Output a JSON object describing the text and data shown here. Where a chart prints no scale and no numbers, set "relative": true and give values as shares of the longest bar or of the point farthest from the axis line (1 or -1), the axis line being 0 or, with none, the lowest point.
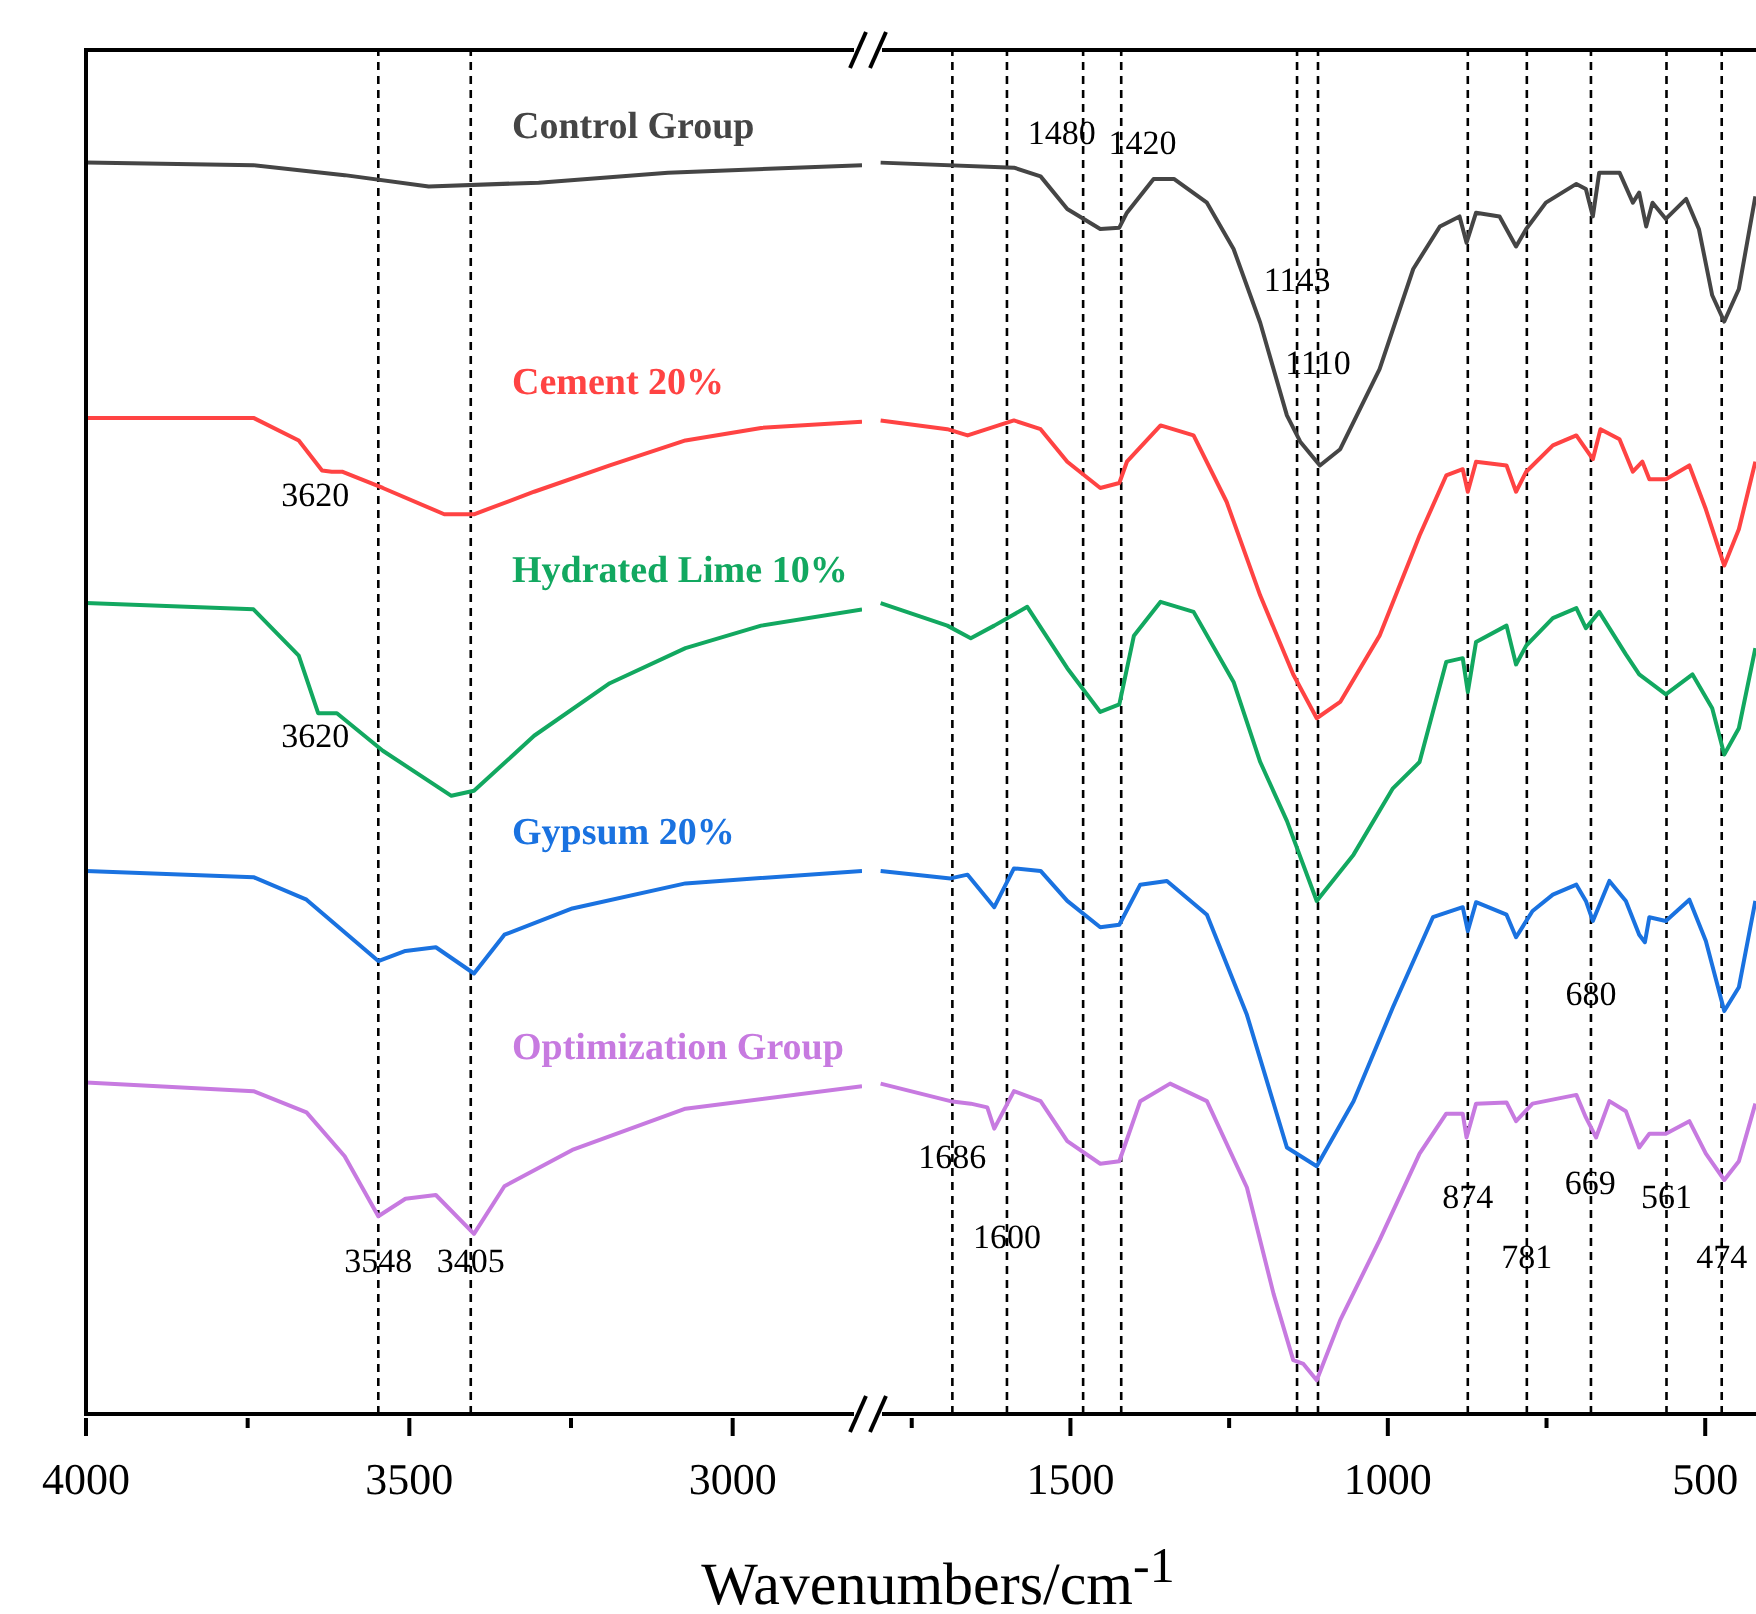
{
  "chart_data": [
    {
      "type": "line",
      "relative": true,
      "xlim": [
        4000,
        2800
      ],
      "xticks": [
        4000,
        {
          "value": 3750,
          "label": null
        },
        3500,
        {
          "value": 3250,
          "label": null
        },
        3000
      ],
      "series": [
        {
          "name": "Control Group",
          "color": "#454545",
          "x": [
            4000,
            3741,
            3600,
            3470,
            3300,
            3100,
            2800
          ],
          "values": [
            1.0,
            0.998,
            0.99,
            0.981,
            0.984,
            0.992,
            0.998
          ]
        },
        {
          "name": "Cement 20%",
          "color": "#ff4343",
          "x": [
            4000,
            3741,
            3671,
            3635,
            3620,
            3604,
            3541,
            3446,
            3400,
            3307,
            3190,
            3073,
            2956,
            2800
          ],
          "values": [
            0.796,
            0.796,
            0.778,
            0.754,
            0.753,
            0.753,
            0.74,
            0.719,
            0.719,
            0.737,
            0.758,
            0.778,
            0.788,
            0.793
          ]
        },
        {
          "name": "Hydrated Lime 10%",
          "color": "#12a860",
          "x": [
            4000,
            3741,
            3671,
            3641,
            3620,
            3612,
            3541,
            3435,
            3400,
            3307,
            3190,
            3073,
            2956,
            2800
          ],
          "values": [
            0.648,
            0.643,
            0.606,
            0.56,
            0.56,
            0.56,
            0.53,
            0.494,
            0.498,
            0.542,
            0.584,
            0.612,
            0.63,
            0.643
          ]
        },
        {
          "name": "Gypsum 20%",
          "color": "#1a72e0",
          "x": [
            4000,
            3741,
            3659,
            3548,
            3506,
            3459,
            3400,
            3353,
            3248,
            3073,
            2800
          ],
          "values": [
            0.434,
            0.429,
            0.411,
            0.362,
            0.37,
            0.373,
            0.352,
            0.383,
            0.404,
            0.424,
            0.434
          ]
        },
        {
          "name": "Optimization Group",
          "color": "#c77ae0",
          "x": [
            4000,
            3741,
            3659,
            3600,
            3548,
            3506,
            3459,
            3400,
            3353,
            3248,
            3073,
            2800
          ],
          "values": [
            0.265,
            0.258,
            0.241,
            0.206,
            0.158,
            0.172,
            0.175,
            0.144,
            0.182,
            0.211,
            0.244,
            0.262
          ]
        }
      ],
      "ref_lines": [
        {
          "axis": "x",
          "value": 3548,
          "color": "#000000",
          "line_style": "dashed"
        },
        {
          "axis": "x",
          "value": 3405,
          "color": "#000000",
          "line_style": "dashed"
        }
      ],
      "annotations": [
        {
          "text": "3620",
          "x": 3620,
          "y": 0.753
        },
        {
          "text": "3620",
          "x": 3620,
          "y": 0.56
        },
        {
          "text": "3548",
          "x": 3548,
          "y": 0.12
        },
        {
          "text": "3405",
          "x": 3405,
          "y": 0.12
        }
      ]
    },
    {
      "type": "line",
      "relative": true,
      "xlim": [
        1800,
        420
      ],
      "xticks": [
        {
          "value": 1750,
          "label": null
        },
        1500,
        {
          "value": 1250,
          "label": null
        },
        1000,
        {
          "value": 750,
          "label": null
        },
        500
      ],
      "xlabel": "Wavenumbers/cm$^{-1}$",
      "series": [
        {
          "color": "#454545",
          "x": [
            1799,
            1589,
            1547,
            1505,
            1453,
            1423,
            1411,
            1369,
            1337,
            1285,
            1243,
            1201,
            1159,
            1138,
            1107,
            1075,
            1013,
            960,
            918,
            887,
            876,
            861,
            824,
            798,
            782,
            751,
            703,
            688,
            677,
            667,
            635,
            614,
            604,
            593,
            583,
            562,
            530,
            510,
            489,
            470,
            447,
            421
          ],
          "values": [
            1.0,
            0.996,
            0.989,
            0.963,
            0.947,
            0.948,
            0.96,
            0.987,
            0.987,
            0.968,
            0.931,
            0.872,
            0.798,
            0.777,
            0.758,
            0.771,
            0.835,
            0.915,
            0.949,
            0.957,
            0.936,
            0.96,
            0.957,
            0.933,
            0.947,
            0.968,
            0.983,
            0.979,
            0.957,
            0.992,
            0.992,
            0.968,
            0.976,
            0.949,
            0.968,
            0.955,
            0.971,
            0.947,
            0.894,
            0.873,
            0.899,
            0.973
          ]
        },
        {
          "color": "#ff4343",
          "x": [
            1799,
            1694,
            1662,
            1589,
            1547,
            1505,
            1453,
            1423,
            1411,
            1358,
            1306,
            1254,
            1201,
            1149,
            1112,
            1075,
            1013,
            950,
            908,
            882,
            874,
            861,
            813,
            798,
            782,
            740,
            703,
            688,
            677,
            665,
            635,
            614,
            599,
            588,
            562,
            525,
            499,
            470,
            447,
            421
          ],
          "values": [
            0.794,
            0.787,
            0.782,
            0.794,
            0.787,
            0.761,
            0.74,
            0.744,
            0.761,
            0.79,
            0.782,
            0.729,
            0.654,
            0.591,
            0.556,
            0.569,
            0.622,
            0.702,
            0.75,
            0.755,
            0.737,
            0.761,
            0.758,
            0.737,
            0.753,
            0.774,
            0.782,
            0.771,
            0.763,
            0.787,
            0.779,
            0.753,
            0.761,
            0.747,
            0.747,
            0.758,
            0.723,
            0.678,
            0.707,
            0.761
          ]
        },
        {
          "color": "#12a860",
          "x": [
            1799,
            1694,
            1657,
            1620,
            1568,
            1505,
            1453,
            1423,
            1400,
            1358,
            1306,
            1243,
            1201,
            1159,
            1112,
            1054,
            992,
            950,
            908,
            882,
            874,
            861,
            813,
            798,
            782,
            740,
            703,
            688,
            667,
            625,
            604,
            562,
            520,
            489,
            470,
            447,
            421
          ],
          "values": [
            0.648,
            0.63,
            0.62,
            0.63,
            0.645,
            0.596,
            0.561,
            0.567,
            0.622,
            0.649,
            0.641,
            0.585,
            0.521,
            0.474,
            0.41,
            0.447,
            0.5,
            0.521,
            0.601,
            0.604,
            0.577,
            0.617,
            0.63,
            0.599,
            0.614,
            0.636,
            0.644,
            0.628,
            0.641,
            0.607,
            0.591,
            0.575,
            0.591,
            0.564,
            0.527,
            0.548,
            0.612
          ]
        },
        {
          "color": "#1a72e0",
          "x": [
            1799,
            1689,
            1662,
            1620,
            1589,
            1547,
            1505,
            1453,
            1423,
            1390,
            1348,
            1285,
            1222,
            1159,
            1112,
            1054,
            992,
            929,
            882,
            874,
            861,
            813,
            798,
            772,
            740,
            703,
            688,
            677,
            651,
            625,
            604,
            595,
            588,
            562,
            525,
            499,
            470,
            447,
            421
          ],
          "values": [
            0.434,
            0.428,
            0.431,
            0.405,
            0.436,
            0.434,
            0.41,
            0.389,
            0.391,
            0.423,
            0.426,
            0.399,
            0.319,
            0.213,
            0.198,
            0.25,
            0.325,
            0.397,
            0.405,
            0.386,
            0.409,
            0.399,
            0.381,
            0.402,
            0.415,
            0.423,
            0.41,
            0.394,
            0.426,
            0.41,
            0.383,
            0.377,
            0.397,
            0.394,
            0.411,
            0.378,
            0.322,
            0.341,
            0.41
          ]
        },
        {
          "color": "#c77ae0",
          "x": [
            1799,
            1689,
            1657,
            1631,
            1620,
            1589,
            1547,
            1505,
            1453,
            1423,
            1390,
            1343,
            1285,
            1222,
            1180,
            1149,
            1133,
            1112,
            1075,
            1013,
            950,
            908,
            882,
            876,
            861,
            813,
            798,
            772,
            703,
            688,
            672,
            651,
            625,
            604,
            588,
            562,
            525,
            499,
            470,
            447,
            421
          ],
          "values": [
            0.264,
            0.25,
            0.248,
            0.245,
            0.228,
            0.258,
            0.25,
            0.218,
            0.2,
            0.202,
            0.25,
            0.264,
            0.25,
            0.181,
            0.096,
            0.043,
            0.04,
            0.027,
            0.075,
            0.139,
            0.208,
            0.24,
            0.24,
            0.221,
            0.248,
            0.249,
            0.234,
            0.248,
            0.255,
            0.237,
            0.221,
            0.25,
            0.242,
            0.213,
            0.224,
            0.224,
            0.234,
            0.208,
            0.187,
            0.202,
            0.248
          ]
        }
      ],
      "ref_lines": [
        {
          "axis": "x",
          "value": 1686,
          "color": "#000000",
          "line_style": "dashed"
        },
        {
          "axis": "x",
          "value": 1600,
          "color": "#000000",
          "line_style": "dashed"
        },
        {
          "axis": "x",
          "value": 1480,
          "color": "#000000",
          "line_style": "dashed"
        },
        {
          "axis": "x",
          "value": 1420,
          "color": "#000000",
          "line_style": "dashed"
        },
        {
          "axis": "x",
          "value": 1143,
          "color": "#000000",
          "line_style": "dashed"
        },
        {
          "axis": "x",
          "value": 1110,
          "color": "#000000",
          "line_style": "dashed"
        },
        {
          "axis": "x",
          "value": 874,
          "color": "#000000",
          "line_style": "dashed"
        },
        {
          "axis": "x",
          "value": 781,
          "color": "#000000",
          "line_style": "dashed"
        },
        {
          "axis": "x",
          "value": 680,
          "color": "#000000",
          "line_style": "dashed"
        },
        {
          "axis": "x",
          "value": 561,
          "color": "#000000",
          "line_style": "dashed"
        },
        {
          "axis": "x",
          "value": 474,
          "color": "#000000",
          "line_style": "dashed"
        }
      ],
      "annotations": [
        {
          "text": "1480",
          "x": 1480,
          "y": 1.021
        },
        {
          "text": "1420",
          "x": 1420,
          "y": 1.013
        },
        {
          "text": "1143",
          "x": 1143,
          "y": 0.904
        },
        {
          "text": "1110",
          "x": 1110,
          "y": 0.837
        },
        {
          "text": "1686",
          "x": 1686,
          "y": 0.203
        },
        {
          "text": "1600",
          "x": 1600,
          "y": 0.139
        },
        {
          "text": "874",
          "x": 874,
          "y": 0.171
        },
        {
          "text": "781",
          "x": 781,
          "y": 0.123
        },
        {
          "text": "680",
          "x": 680,
          "y": 0.333
        },
        {
          "text": "669",
          "x": 669,
          "y": 0.203
        },
        {
          "text": "561",
          "x": 561,
          "y": 0.171
        },
        {
          "text": "474",
          "x": 474,
          "y": 0.123
        }
      ]
    }
  ]
}
